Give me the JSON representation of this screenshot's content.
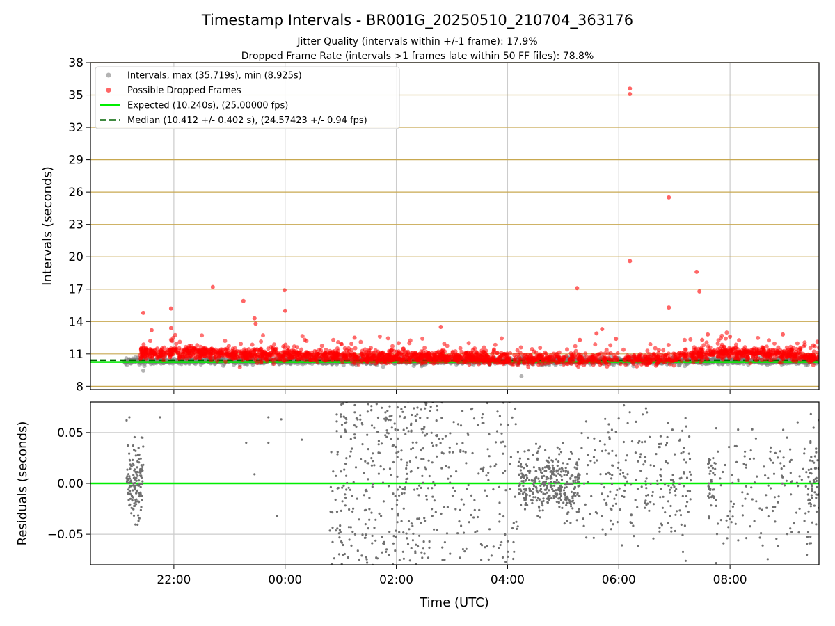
{
  "figure": {
    "title": "Timestamp Intervals - BR001G_20250510_210704_363176",
    "subtitle_1": "Jitter Quality (intervals within +/-1 frame): 17.9%",
    "subtitle_2": "Dropped Frame Rate (intervals >1 frames late within 50 FF files): 78.8%",
    "xlabel": "Time (UTC)"
  },
  "colors": {
    "intervals": "#808080",
    "dropped": "#ff0000",
    "expected": "#00ee00",
    "median": "#006400",
    "hgrid_top": "#c8a850",
    "grid": "#cccccc",
    "residuals": "#707070"
  },
  "chart_data": [
    {
      "type": "scatter",
      "ylabel": "Intervals (seconds)",
      "xlim_hours": [
        20.5,
        33.6
      ],
      "ylim": [
        7.7,
        38
      ],
      "yticks": [
        8,
        11,
        14,
        17,
        20,
        23,
        26,
        29,
        32,
        35,
        38
      ],
      "xticks": [
        {
          "hour": 22,
          "label": "22:00"
        },
        {
          "hour": 24,
          "label": "00:00"
        },
        {
          "hour": 26,
          "label": "02:00"
        },
        {
          "hour": 28,
          "label": "04:00"
        },
        {
          "hour": 30,
          "label": "06:00"
        },
        {
          "hour": 32,
          "label": "08:00"
        }
      ],
      "legend_position": "upper-left",
      "legend": [
        {
          "kind": "marker-gray",
          "label": "Intervals, max (35.719s), min (8.925s)"
        },
        {
          "kind": "marker-red",
          "label": "Possible Dropped Frames"
        },
        {
          "kind": "line-solid",
          "label": "Expected (10.240s), (25.00000 fps)"
        },
        {
          "kind": "line-dashed",
          "label": "Median (10.412 +/- 0.402 s), (24.57423 +/- 0.94 fps)"
        }
      ],
      "expected": 10.24,
      "median": 10.412,
      "series_intervals": {
        "x_range": [
          21.1,
          33.6
        ],
        "y_center": 10.35,
        "y_spread": 0.3,
        "min": 8.925,
        "max": 35.719,
        "notable": [
          {
            "x": 21.45,
            "y": 9.45
          },
          {
            "x": 28.25,
            "y": 8.93
          }
        ]
      },
      "series_dropped": {
        "dense_band": [
          {
            "x": 21.4,
            "y": 11.0
          },
          {
            "x": 22.0,
            "y": 11.2
          },
          {
            "x": 23.0,
            "y": 11.0
          },
          {
            "x": 24.0,
            "y": 10.9
          },
          {
            "x": 25.0,
            "y": 10.8
          },
          {
            "x": 26.0,
            "y": 10.7
          },
          {
            "x": 27.0,
            "y": 10.7
          },
          {
            "x": 27.6,
            "y": 10.6
          },
          {
            "x": 28.2,
            "y": 10.5
          },
          {
            "x": 29.1,
            "y": 10.5
          },
          {
            "x": 30.0,
            "y": 10.5
          },
          {
            "x": 31.0,
            "y": 10.6
          },
          {
            "x": 31.5,
            "y": 11.0
          },
          {
            "x": 32.0,
            "y": 11.1
          },
          {
            "x": 33.0,
            "y": 11.0
          },
          {
            "x": 33.6,
            "y": 10.6
          }
        ],
        "outliers": [
          {
            "x": 21.45,
            "y": 14.8
          },
          {
            "x": 21.6,
            "y": 13.2
          },
          {
            "x": 21.95,
            "y": 15.2
          },
          {
            "x": 21.95,
            "y": 13.4
          },
          {
            "x": 22.7,
            "y": 17.2
          },
          {
            "x": 23.25,
            "y": 15.9
          },
          {
            "x": 23.45,
            "y": 14.3
          },
          {
            "x": 23.47,
            "y": 13.8
          },
          {
            "x": 23.99,
            "y": 16.9
          },
          {
            "x": 24.0,
            "y": 15.0
          },
          {
            "x": 25.25,
            "y": 12.5
          },
          {
            "x": 26.8,
            "y": 13.5
          },
          {
            "x": 29.25,
            "y": 17.1
          },
          {
            "x": 29.3,
            "y": 12.3
          },
          {
            "x": 29.6,
            "y": 12.9
          },
          {
            "x": 29.7,
            "y": 13.3
          },
          {
            "x": 29.95,
            "y": 12.4
          },
          {
            "x": 30.2,
            "y": 35.6
          },
          {
            "x": 30.2,
            "y": 35.1
          },
          {
            "x": 30.2,
            "y": 19.6
          },
          {
            "x": 30.9,
            "y": 25.5
          },
          {
            "x": 30.9,
            "y": 15.3
          },
          {
            "x": 31.4,
            "y": 18.6
          },
          {
            "x": 31.45,
            "y": 16.8
          },
          {
            "x": 31.6,
            "y": 12.8
          },
          {
            "x": 31.5,
            "y": 12.3
          },
          {
            "x": 32.0,
            "y": 12.6
          },
          {
            "x": 32.95,
            "y": 12.8
          }
        ]
      }
    },
    {
      "type": "scatter",
      "ylabel": "Residuals (seconds)",
      "xlim_hours": [
        20.5,
        33.6
      ],
      "ylim": [
        -0.08,
        0.08
      ],
      "yticks": [
        {
          "value": 0.05,
          "label": "0.05"
        },
        {
          "value": 0.0,
          "label": "0.00"
        },
        {
          "value": -0.05,
          "label": "−0.05"
        }
      ],
      "zero_line": 0.0,
      "series_residuals": {
        "clusters": [
          {
            "x_range": [
              21.15,
              21.45
            ],
            "spread": 0.03,
            "count": 140
          },
          {
            "x_range": [
              24.8,
              26.9
            ],
            "spread": 0.09,
            "count": 420
          },
          {
            "x_range": [
              26.9,
              28.2
            ],
            "spread": 0.09,
            "count": 150
          },
          {
            "x_range": [
              28.2,
              29.3
            ],
            "spread": 0.025,
            "count": 380
          },
          {
            "x_range": [
              29.3,
              31.3
            ],
            "spread": 0.06,
            "count": 240
          },
          {
            "x_range": [
              31.6,
              31.7
            ],
            "spread": 0.03,
            "count": 30
          },
          {
            "x_range": [
              31.7,
              33.4
            ],
            "spread": 0.06,
            "count": 140
          },
          {
            "x_range": [
              33.4,
              33.6
            ],
            "spread": 0.04,
            "count": 60
          }
        ],
        "isolated": [
          {
            "x": 21.15,
            "y": 0.062
          },
          {
            "x": 21.2,
            "y": 0.065
          },
          {
            "x": 21.75,
            "y": 0.065
          },
          {
            "x": 23.3,
            "y": 0.04
          },
          {
            "x": 23.7,
            "y": 0.065
          },
          {
            "x": 23.7,
            "y": 0.04
          },
          {
            "x": 23.93,
            "y": 0.063
          },
          {
            "x": 23.85,
            "y": -0.032
          },
          {
            "x": 23.45,
            "y": 0.009
          },
          {
            "x": 24.3,
            "y": 0.043
          }
        ]
      }
    }
  ]
}
